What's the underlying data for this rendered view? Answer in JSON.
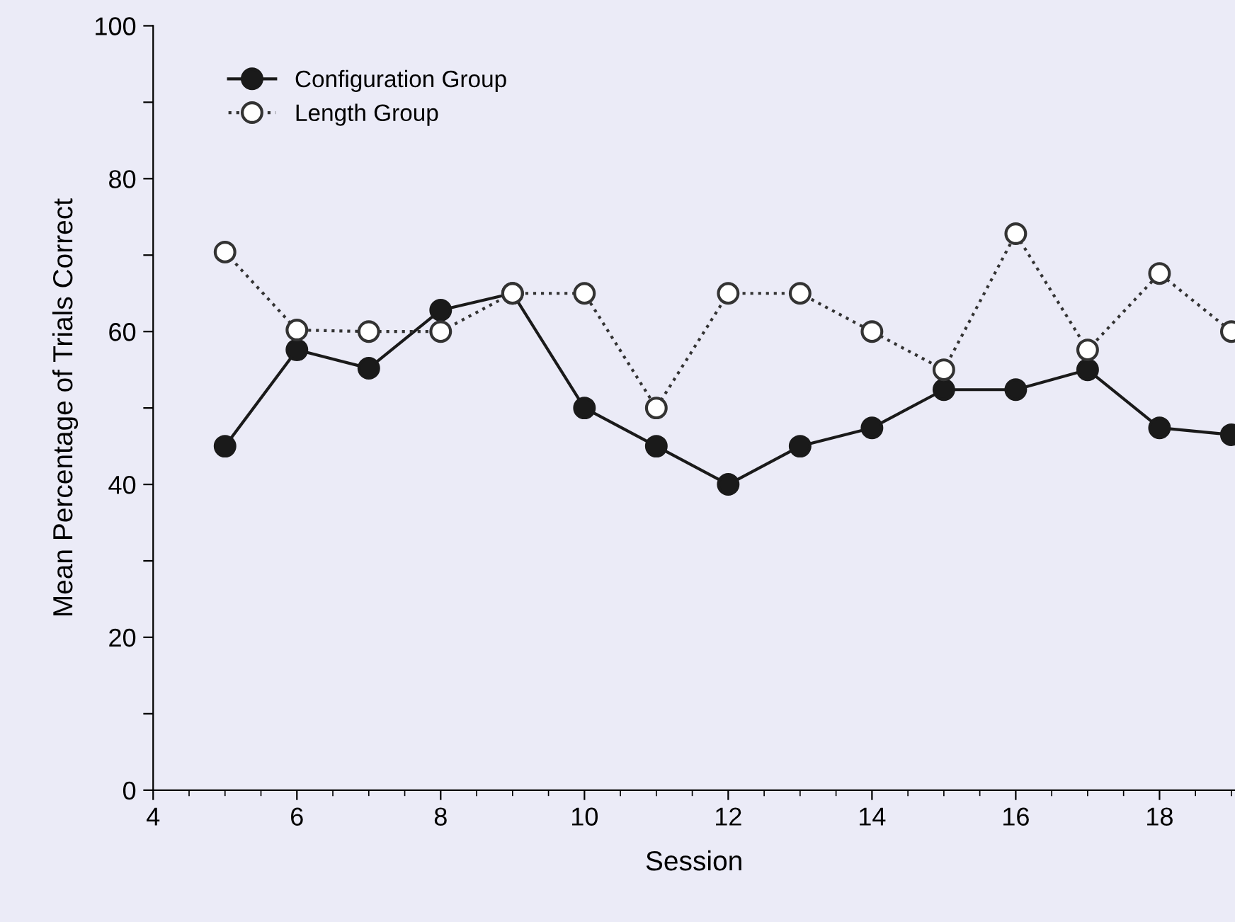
{
  "chart_data": {
    "type": "line",
    "xlabel": "Session",
    "ylabel": "Mean Percentage of Trials Correct",
    "x": [
      5,
      6,
      7,
      8,
      9,
      10,
      11,
      12,
      13,
      14,
      15,
      16,
      17,
      18,
      19
    ],
    "series": [
      {
        "name": "Configuration Group",
        "color": "#1a1a1a",
        "marker": "circle",
        "line_style": "solid",
        "values": [
          45,
          57.6,
          55.2,
          62.8,
          65,
          50,
          45,
          40,
          45,
          47.4,
          52.4,
          52.4,
          55,
          47.4,
          46.5
        ]
      },
      {
        "name": "Length Group",
        "color": "#333333",
        "marker": "circle",
        "line_style": "dotted",
        "values": [
          70.4,
          60.2,
          60,
          60,
          65,
          65,
          50,
          65,
          65,
          60,
          55,
          72.8,
          57.6,
          67.6,
          60
        ]
      }
    ],
    "xlim": [
      4,
      19.05
    ],
    "xticks": [
      4,
      6,
      8,
      10,
      12,
      14,
      16,
      18
    ],
    "ylim": [
      0,
      100
    ],
    "yticks": [
      0,
      {
        "value": 10,
        "label": null
      },
      20,
      {
        "value": 30,
        "label": null
      },
      40,
      {
        "value": 50,
        "label": null
      },
      60,
      {
        "value": 70,
        "label": null
      },
      80,
      {
        "value": 90,
        "label": null
      },
      100
    ],
    "legend": "top left",
    "grid": false
  }
}
